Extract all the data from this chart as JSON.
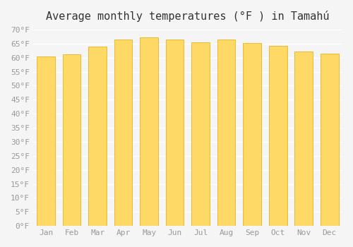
{
  "title": "Average monthly temperatures (°F ) in Tamahú",
  "months": [
    "Jan",
    "Feb",
    "Mar",
    "Apr",
    "May",
    "Jun",
    "Jul",
    "Aug",
    "Sep",
    "Oct",
    "Nov",
    "Dec"
  ],
  "values": [
    60.3,
    61.2,
    64.0,
    66.4,
    67.3,
    66.5,
    65.5,
    66.4,
    65.3,
    64.1,
    62.2,
    61.3
  ],
  "bar_color_top": "#FFC200",
  "bar_color_bottom": "#FFD966",
  "bar_edge_color": "#E8A800",
  "background_color": "#F5F5F5",
  "grid_color": "#FFFFFF",
  "ylim": [
    0,
    70
  ],
  "yticks": [
    0,
    5,
    10,
    15,
    20,
    25,
    30,
    35,
    40,
    45,
    50,
    55,
    60,
    65,
    70
  ],
  "ytick_labels": [
    "0°F",
    "5°F",
    "10°F",
    "15°F",
    "20°F",
    "25°F",
    "30°F",
    "35°F",
    "40°F",
    "45°F",
    "50°F",
    "55°F",
    "60°F",
    "65°F",
    "70°F"
  ],
  "title_fontsize": 11,
  "tick_fontsize": 8,
  "tick_color": "#999999"
}
